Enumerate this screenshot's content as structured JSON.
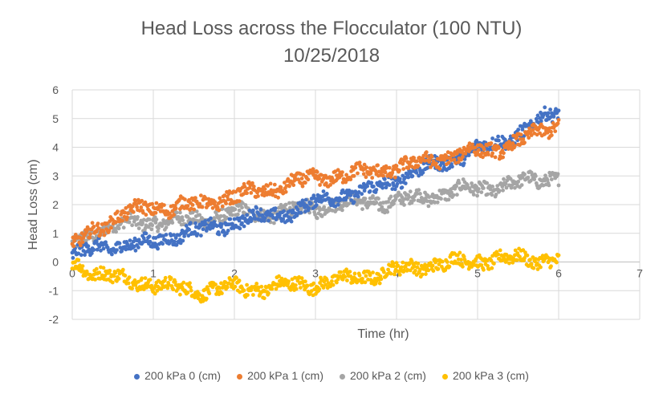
{
  "chart_data": {
    "type": "scatter",
    "title": "Head Loss across the Flocculator (100 NTU)",
    "subtitle": "10/25/2018",
    "xlabel": "Time (hr)",
    "ylabel": "Head Loss (cm)",
    "xlim": [
      0,
      7
    ],
    "ylim": [
      -2,
      6
    ],
    "x_ticks": [
      "0",
      "1",
      "2",
      "3",
      "4",
      "5",
      "6",
      "7"
    ],
    "y_ticks": [
      "-2",
      "-1",
      "0",
      "1",
      "2",
      "3",
      "4",
      "5",
      "6"
    ],
    "grid": true,
    "legend_position": "bottom",
    "series": [
      {
        "name": "200 kPa 0 (cm)",
        "color": "#4472C4",
        "trend_x": [
          0,
          0.3,
          0.6,
          0.9,
          1.2,
          1.6,
          2.0,
          2.4,
          2.8,
          3.2,
          3.6,
          4.0,
          4.4,
          4.8,
          5.2,
          5.6,
          6.0
        ],
        "trend_y": [
          0.2,
          0.5,
          0.6,
          0.6,
          0.9,
          1.1,
          1.4,
          1.6,
          1.8,
          2.3,
          2.4,
          2.9,
          3.3,
          3.7,
          4.1,
          4.6,
          5.3
        ]
      },
      {
        "name": "200 kPa 1 (cm)",
        "color": "#ED7D31",
        "trend_x": [
          0,
          0.3,
          0.6,
          0.9,
          1.2,
          1.6,
          2.0,
          2.4,
          2.8,
          3.2,
          3.6,
          4.0,
          4.4,
          4.8,
          5.2,
          5.6,
          6.0
        ],
        "trend_y": [
          0.5,
          1.2,
          1.6,
          1.9,
          1.9,
          2.0,
          2.3,
          2.5,
          2.8,
          3.0,
          3.1,
          3.3,
          3.5,
          3.8,
          3.9,
          4.3,
          4.8
        ]
      },
      {
        "name": "200 kPa 2 (cm)",
        "color": "#A5A5A5",
        "trend_x": [
          0,
          0.3,
          0.6,
          0.9,
          1.2,
          1.6,
          2.0,
          2.4,
          2.8,
          3.2,
          3.6,
          4.0,
          4.4,
          4.8,
          5.2,
          5.6,
          6.0
        ],
        "trend_y": [
          0.6,
          1.1,
          1.3,
          1.4,
          1.4,
          1.5,
          1.7,
          1.7,
          1.8,
          2.0,
          2.1,
          2.1,
          2.3,
          2.5,
          2.6,
          2.8,
          3.0
        ]
      },
      {
        "name": "200 kPa 3 (cm)",
        "color": "#FFC000",
        "trend_x": [
          0,
          0.3,
          0.6,
          0.9,
          1.2,
          1.6,
          2.0,
          2.4,
          2.8,
          3.2,
          3.6,
          4.0,
          4.4,
          4.8,
          5.2,
          5.6,
          6.0
        ],
        "trend_y": [
          0.0,
          -0.4,
          -0.6,
          -0.7,
          -0.9,
          -1.0,
          -0.9,
          -0.9,
          -0.8,
          -0.7,
          -0.5,
          -0.3,
          -0.1,
          0.0,
          0.1,
          0.1,
          0.1
        ]
      }
    ]
  }
}
